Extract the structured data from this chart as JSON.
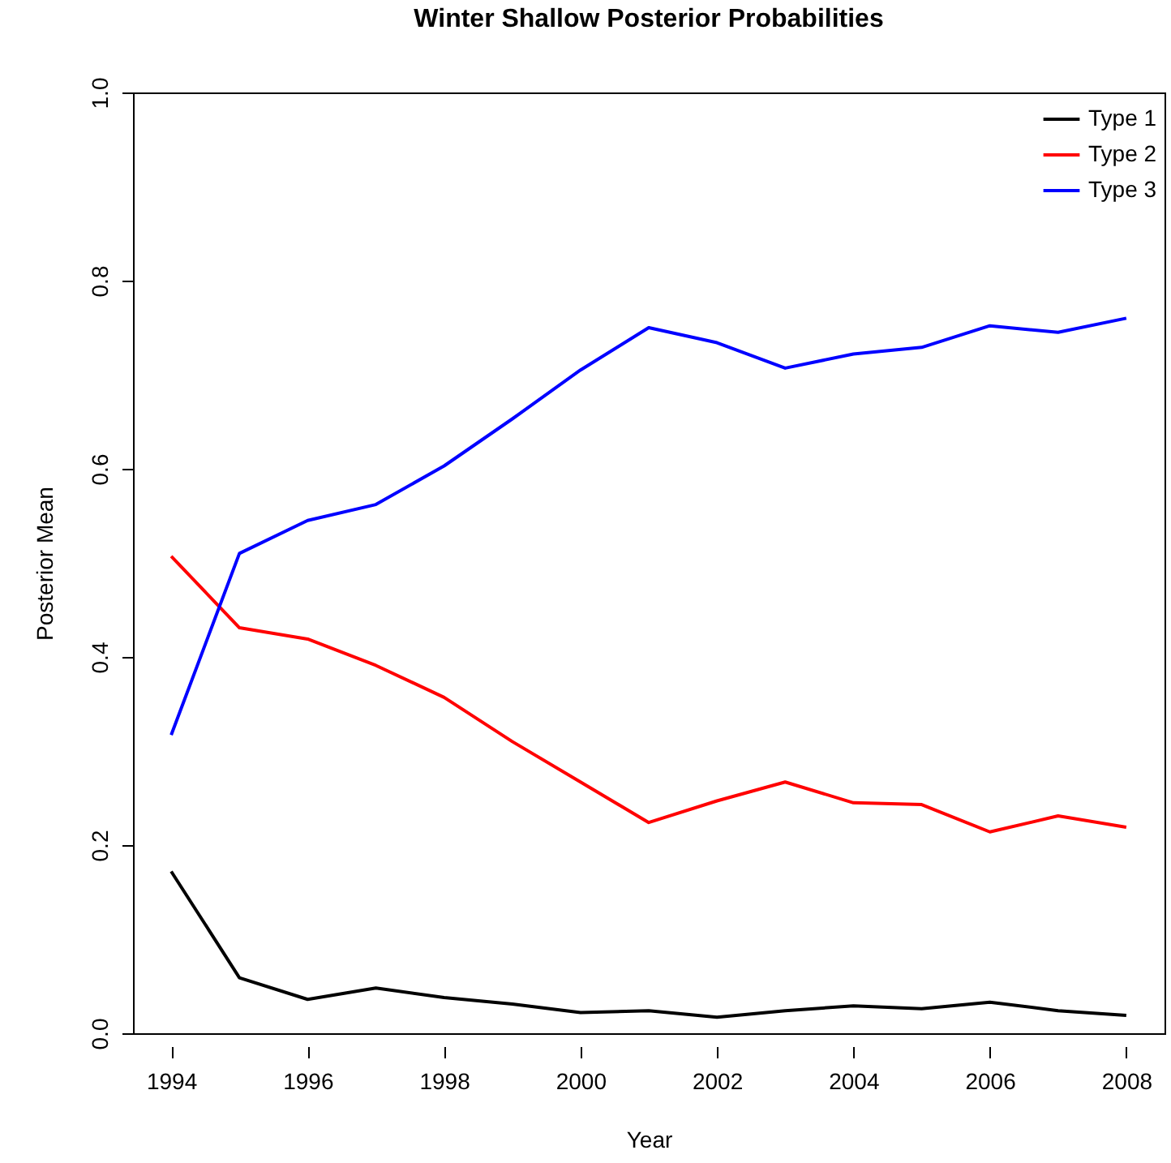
{
  "chart_data": {
    "type": "line",
    "title": "Winter Shallow Posterior Probabilities",
    "xlabel": "Year",
    "ylabel": "Posterior Mean",
    "x": [
      1994,
      1995,
      1996,
      1997,
      1998,
      1999,
      2000,
      2001,
      2002,
      2003,
      2004,
      2005,
      2006,
      2007,
      2008
    ],
    "series": [
      {
        "name": "Type 1",
        "color": "#000000",
        "values": [
          0.172,
          0.059,
          0.036,
          0.048,
          0.038,
          0.031,
          0.022,
          0.024,
          0.017,
          0.024,
          0.029,
          0.026,
          0.033,
          0.024,
          0.019
        ]
      },
      {
        "name": "Type 2",
        "color": "#ff0000",
        "values": [
          0.507,
          0.431,
          0.419,
          0.391,
          0.357,
          0.31,
          0.267,
          0.224,
          0.247,
          0.267,
          0.245,
          0.243,
          0.214,
          0.231,
          0.219
        ]
      },
      {
        "name": "Type 3",
        "color": "#0000ff",
        "values": [
          0.317,
          0.51,
          0.545,
          0.562,
          0.603,
          0.653,
          0.705,
          0.75,
          0.734,
          0.707,
          0.722,
          0.729,
          0.752,
          0.745,
          0.76
        ]
      }
    ],
    "xlim": [
      1993.44,
      2008.56
    ],
    "xticks": [
      1994,
      1996,
      1998,
      2000,
      2002,
      2004,
      2006,
      2008
    ],
    "ylim": [
      0,
      1
    ],
    "yticks": [
      {
        "value": 0,
        "label": "0.0"
      },
      0.2,
      0.4,
      0.6,
      0.8,
      {
        "value": 1,
        "label": "1.0"
      }
    ],
    "legend": "top right",
    "grid": false,
    "marker": "none",
    "line_style": "solid"
  }
}
